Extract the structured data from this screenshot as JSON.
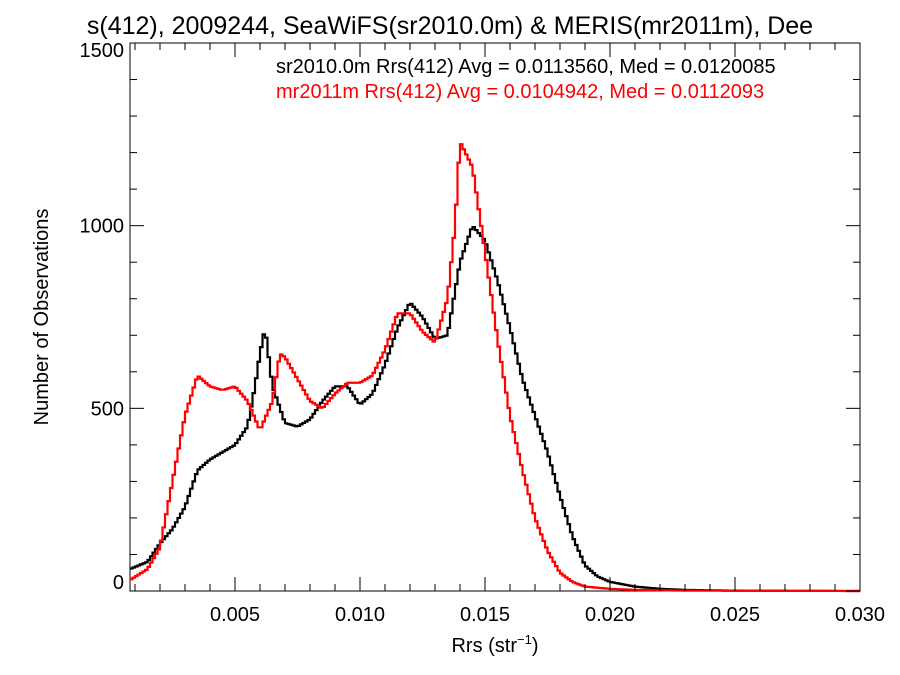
{
  "chart_data": {
    "type": "line",
    "title": "s(412), 2009244, SeaWiFS(sr2010.0m) & MERIS(mr2011m), Dee",
    "xlabel": "Rrs (str",
    "xlabel_sup": "−1",
    "xlabel_suffix": ")",
    "ylabel": "Number of Observations",
    "xlim": [
      0.0008,
      0.03
    ],
    "ylim": [
      0,
      1500
    ],
    "x_ticks": [
      0.005,
      0.01,
      0.015,
      0.02,
      0.025,
      0.03
    ],
    "x_tick_labels": [
      "0.005",
      "0.010",
      "0.015",
      "0.020",
      "0.025",
      "0.030"
    ],
    "y_ticks": [
      0,
      500,
      1000,
      1500
    ],
    "y_tick_labels": [
      "0",
      "500",
      "1000",
      "1500"
    ],
    "grid": false,
    "legend_placement": "top-right",
    "series": [
      {
        "name": "sr2010.0m",
        "legend_text": "sr2010.0m Rrs(412) Avg = 0.0113560, Med = 0.0120085",
        "color": "#000000",
        "points": [
          [
            0.0008,
            60
          ],
          [
            0.0015,
            80
          ],
          [
            0.002,
            130
          ],
          [
            0.0025,
            170
          ],
          [
            0.003,
            230
          ],
          [
            0.0035,
            330
          ],
          [
            0.004,
            360
          ],
          [
            0.0045,
            380
          ],
          [
            0.005,
            400
          ],
          [
            0.0055,
            450
          ],
          [
            0.0058,
            560
          ],
          [
            0.006,
            650
          ],
          [
            0.0062,
            720
          ],
          [
            0.0065,
            560
          ],
          [
            0.0068,
            500
          ],
          [
            0.007,
            460
          ],
          [
            0.0075,
            450
          ],
          [
            0.008,
            470
          ],
          [
            0.0085,
            520
          ],
          [
            0.009,
            560
          ],
          [
            0.0095,
            560
          ],
          [
            0.01,
            510
          ],
          [
            0.0105,
            540
          ],
          [
            0.011,
            620
          ],
          [
            0.0115,
            720
          ],
          [
            0.012,
            790
          ],
          [
            0.0125,
            750
          ],
          [
            0.013,
            690
          ],
          [
            0.0135,
            700
          ],
          [
            0.0138,
            820
          ],
          [
            0.014,
            900
          ],
          [
            0.0145,
            1000
          ],
          [
            0.015,
            960
          ],
          [
            0.0155,
            850
          ],
          [
            0.016,
            720
          ],
          [
            0.0165,
            580
          ],
          [
            0.017,
            480
          ],
          [
            0.0175,
            380
          ],
          [
            0.018,
            260
          ],
          [
            0.0185,
            150
          ],
          [
            0.019,
            70
          ],
          [
            0.0195,
            40
          ],
          [
            0.02,
            25
          ],
          [
            0.021,
            12
          ],
          [
            0.022,
            6
          ],
          [
            0.023,
            3
          ],
          [
            0.025,
            1
          ],
          [
            0.03,
            0
          ]
        ]
      },
      {
        "name": "mr2011m",
        "legend_text": "mr2011m Rrs(412) Avg = 0.0104942, Med = 0.0112093",
        "color": "#ff0000",
        "points": [
          [
            0.0008,
            30
          ],
          [
            0.0015,
            60
          ],
          [
            0.002,
            120
          ],
          [
            0.0025,
            300
          ],
          [
            0.003,
            480
          ],
          [
            0.0035,
            590
          ],
          [
            0.004,
            560
          ],
          [
            0.0045,
            550
          ],
          [
            0.005,
            560
          ],
          [
            0.0055,
            520
          ],
          [
            0.006,
            440
          ],
          [
            0.0065,
            520
          ],
          [
            0.0068,
            650
          ],
          [
            0.007,
            640
          ],
          [
            0.0075,
            580
          ],
          [
            0.008,
            520
          ],
          [
            0.0085,
            500
          ],
          [
            0.009,
            540
          ],
          [
            0.0095,
            570
          ],
          [
            0.01,
            570
          ],
          [
            0.0105,
            590
          ],
          [
            0.011,
            660
          ],
          [
            0.0115,
            760
          ],
          [
            0.012,
            760
          ],
          [
            0.0125,
            710
          ],
          [
            0.013,
            680
          ],
          [
            0.0135,
            800
          ],
          [
            0.0138,
            1000
          ],
          [
            0.014,
            1230
          ],
          [
            0.0145,
            1160
          ],
          [
            0.015,
            930
          ],
          [
            0.0155,
            690
          ],
          [
            0.016,
            480
          ],
          [
            0.0165,
            330
          ],
          [
            0.017,
            200
          ],
          [
            0.0175,
            110
          ],
          [
            0.018,
            50
          ],
          [
            0.0185,
            25
          ],
          [
            0.019,
            12
          ],
          [
            0.02,
            6
          ],
          [
            0.021,
            3
          ],
          [
            0.023,
            1
          ],
          [
            0.03,
            0
          ]
        ]
      }
    ]
  }
}
